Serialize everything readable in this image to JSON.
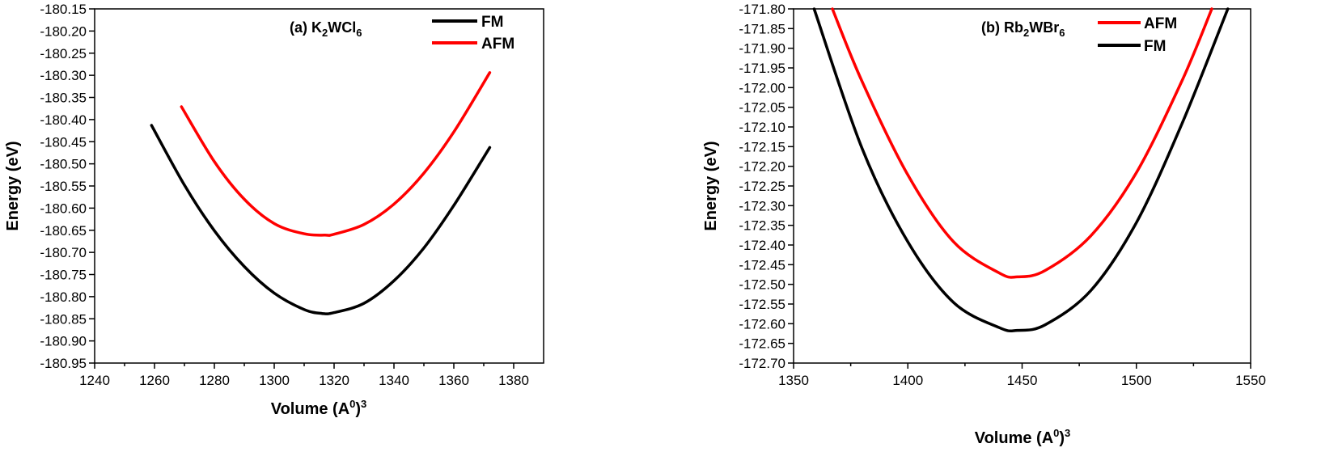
{
  "chart_data": [
    {
      "type": "line",
      "title": "(a) K2WCl6",
      "title_parts": {
        "prefix": "(a) K",
        "sub1": "2",
        "mid": "WCl",
        "sub2": "6"
      },
      "xlabel": "Volume (A0)3",
      "xlabel_parts": {
        "prefix": "Volume (A",
        "sup1": "0",
        "mid": ")",
        "sup2": "3"
      },
      "ylabel": "Energy (eV)",
      "xlim": [
        1240,
        1390
      ],
      "ylim": [
        -180.95,
        -180.15
      ],
      "xticks": [
        1240,
        1260,
        1280,
        1300,
        1320,
        1340,
        1360,
        1380
      ],
      "xtick_labels": [
        "1240",
        "1260",
        "1280",
        "1300",
        "1320",
        "1340",
        "1360",
        "1380"
      ],
      "yticks": [
        -180.15,
        -180.2,
        -180.25,
        -180.3,
        -180.35,
        -180.4,
        -180.45,
        -180.5,
        -180.55,
        -180.6,
        -180.65,
        -180.7,
        -180.75,
        -180.8,
        -180.85,
        -180.9,
        -180.95
      ],
      "ytick_labels": [
        "-180.15",
        "-180.20",
        "-180.25",
        "-180.30",
        "-180.35",
        "-180.40",
        "-180.45",
        "-180.50",
        "-180.55",
        "-180.60",
        "-180.65",
        "-180.70",
        "-180.75",
        "-180.80",
        "-180.85",
        "-180.90",
        "-180.95"
      ],
      "legend_position": "top-right",
      "series": [
        {
          "name": "FM",
          "color": "#000000",
          "x": [
            1259,
            1270,
            1280,
            1290,
            1300,
            1310,
            1316,
            1320,
            1330,
            1340,
            1350,
            1360,
            1372
          ],
          "y": [
            -180.413,
            -180.548,
            -180.651,
            -180.732,
            -180.792,
            -180.829,
            -180.838,
            -180.836,
            -180.815,
            -180.764,
            -180.69,
            -180.594,
            -180.463
          ]
        },
        {
          "name": "AFM",
          "color": "#ff0000",
          "x": [
            1269,
            1280,
            1290,
            1300,
            1310,
            1317,
            1320,
            1330,
            1340,
            1350,
            1360,
            1372
          ],
          "y": [
            -180.371,
            -180.495,
            -180.58,
            -180.635,
            -180.658,
            -180.661,
            -180.659,
            -180.637,
            -180.591,
            -180.521,
            -180.428,
            -180.294
          ]
        }
      ]
    },
    {
      "type": "line",
      "title": "(b) Rb2WBr6",
      "title_parts": {
        "prefix": "(b) Rb",
        "sub1": "2",
        "mid": "WBr",
        "sub2": "6"
      },
      "xlabel": "Volume (A0)3",
      "xlabel_parts": {
        "prefix": "Volume (A",
        "sup1": "0",
        "mid": ")",
        "sup2": "3"
      },
      "ylabel": "Energy (eV)",
      "xlim": [
        1350,
        1550
      ],
      "ylim": [
        -172.7,
        -171.8
      ],
      "xticks": [
        1350,
        1400,
        1450,
        1500,
        1550
      ],
      "xtick_labels": [
        "1350",
        "1400",
        "1450",
        "1500",
        "1550"
      ],
      "yticks": [
        -171.8,
        -171.85,
        -171.9,
        -171.95,
        -172.0,
        -172.05,
        -172.1,
        -172.15,
        -172.2,
        -172.25,
        -172.3,
        -172.35,
        -172.4,
        -172.45,
        -172.5,
        -172.55,
        -172.6,
        -172.65,
        -172.7
      ],
      "ytick_labels": [
        "-171.80",
        "-171.85",
        "-171.90",
        "-171.95",
        "-172.00",
        "-172.05",
        "-172.10",
        "-172.15",
        "-172.20",
        "-172.25",
        "-172.30",
        "-172.35",
        "-172.40",
        "-172.45",
        "-172.50",
        "-172.55",
        "-172.60",
        "-172.65",
        "-172.70"
      ],
      "legend_position": "top-right",
      "series": [
        {
          "name": "AFM",
          "color": "#ff0000",
          "x": [
            1367,
            1380,
            1400,
            1420,
            1440,
            1448,
            1460,
            1480,
            1500,
            1520,
            1533
          ],
          "y": [
            -171.8,
            -171.985,
            -172.222,
            -172.392,
            -172.471,
            -172.481,
            -172.465,
            -172.377,
            -172.216,
            -171.982,
            -171.8
          ]
        },
        {
          "name": "FM",
          "color": "#000000",
          "x": [
            1359,
            1380,
            1400,
            1420,
            1440,
            1448,
            1460,
            1480,
            1500,
            1520,
            1540
          ],
          "y": [
            -171.8,
            -172.155,
            -172.392,
            -172.546,
            -172.61,
            -172.617,
            -172.603,
            -172.516,
            -172.343,
            -172.091,
            -171.8
          ]
        }
      ]
    }
  ]
}
